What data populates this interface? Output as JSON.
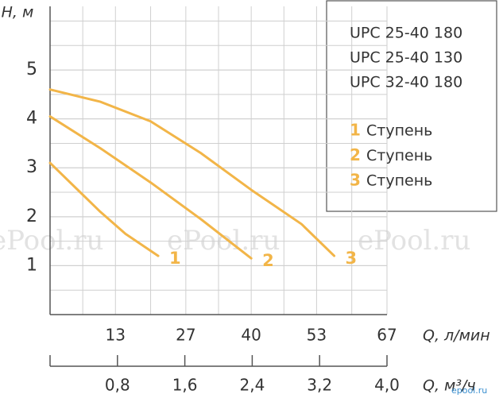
{
  "chart_data": {
    "type": "line",
    "y_label": "H, м",
    "x_label": "Q, л/мин",
    "x2_label": "Q, м³/ч",
    "xlim": [
      0,
      67
    ],
    "xticks": [
      13,
      27,
      40,
      53,
      67
    ],
    "x2lim": [
      0,
      4.0
    ],
    "x2ticks": [
      {
        "value": 0.8,
        "label": "0,8"
      },
      {
        "value": 1.6,
        "label": "1,6"
      },
      {
        "value": 2.4,
        "label": "2,4"
      },
      {
        "value": 3.2,
        "label": "3,2"
      },
      {
        "value": 4.0,
        "label": "4,0"
      }
    ],
    "ylim": [
      0,
      6.3
    ],
    "yticks": [
      1,
      2,
      3,
      4,
      5
    ],
    "grid": true,
    "models": [
      "UPC 25-40 180",
      "UPC 25-40 130",
      "UPC 32-40 180"
    ],
    "legend_label": "Ступень",
    "series": [
      {
        "name": "1",
        "color": "#f2b548",
        "x": [
          0,
          5,
          10,
          15,
          21.5
        ],
        "values": [
          3.1,
          2.6,
          2.1,
          1.65,
          1.2
        ]
      },
      {
        "name": "2",
        "color": "#f2b548",
        "x": [
          0,
          10,
          20,
          30,
          40
        ],
        "values": [
          4.05,
          3.4,
          2.7,
          1.95,
          1.15
        ]
      },
      {
        "name": "3",
        "color": "#f2b548",
        "x": [
          0,
          10,
          20,
          30,
          40,
          50,
          56.5
        ],
        "values": [
          4.6,
          4.35,
          3.95,
          3.3,
          2.55,
          1.85,
          1.2
        ]
      }
    ],
    "watermarks": [
      "ePool.ru",
      "ePool.ru",
      "ePool.ru"
    ],
    "logo": "epool.ru"
  }
}
